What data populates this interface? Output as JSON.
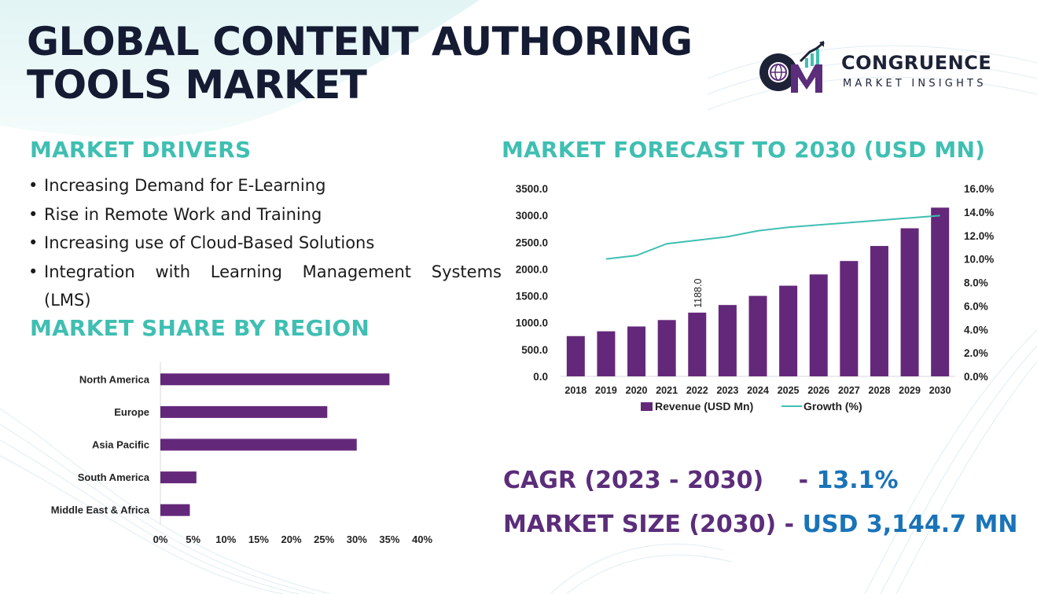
{
  "title": {
    "line1": "GLOBAL CONTENT AUTHORING",
    "line2": "TOOLS MARKET"
  },
  "logo": {
    "name": "CONGRUENCE",
    "tagline": "MARKET INSIGHTS"
  },
  "drivers": {
    "heading": "MARKET DRIVERS",
    "items": [
      "Increasing Demand for E-Learning",
      "Rise in Remote Work and Training",
      "Increasing use of Cloud-Based Solutions"
    ],
    "last_item_words": [
      "Integration",
      "with",
      "Learning",
      "Management",
      "Systems"
    ],
    "last_item_tail": "(LMS)"
  },
  "region": {
    "heading": "MARKET SHARE BY REGION"
  },
  "forecast": {
    "heading": "MARKET FORECAST TO 2030 (USD MN)"
  },
  "stats": {
    "cagr_label": "CAGR (2023 - 2030)",
    "cagr_dash": "-",
    "cagr_value": "13.1%",
    "size_label": "MARKET SIZE (2030)",
    "size_dash": "-",
    "size_value": "USD 3,144.7 MN"
  },
  "colors": {
    "bar": "#64287a",
    "line": "#3fbfb2",
    "heading": "#3fbfb2",
    "title": "#141b33"
  },
  "chart_data": [
    {
      "type": "bar",
      "orientation": "horizontal",
      "categories": [
        "North America",
        "Europe",
        "Asia Pacific",
        "South America",
        "Middle East & Africa"
      ],
      "values": [
        35,
        25.5,
        30,
        5.5,
        4.5
      ],
      "xlim": [
        0,
        40
      ],
      "xticks": [
        "0%",
        "5%",
        "10%",
        "15%",
        "20%",
        "25%",
        "30%",
        "35%",
        "40%"
      ],
      "grid": false
    },
    {
      "type": "bar",
      "categories": [
        "2018",
        "2019",
        "2020",
        "2021",
        "2022",
        "2023",
        "2024",
        "2025",
        "2026",
        "2027",
        "2028",
        "2029",
        "2030"
      ],
      "series": [
        {
          "name": "Revenue (USD Mn)",
          "type": "bar",
          "axis": "left",
          "values": [
            750,
            840,
            930,
            1050,
            1188,
            1330,
            1500,
            1690,
            1900,
            2150,
            2430,
            2760,
            3144.7
          ]
        },
        {
          "name": "Growth (%)",
          "type": "line",
          "axis": "right",
          "values": [
            null,
            10.0,
            10.3,
            11.3,
            11.6,
            11.9,
            12.4,
            12.7,
            12.9,
            13.1,
            13.3,
            13.5,
            13.7
          ]
        }
      ],
      "data_labels": [
        {
          "index": 4,
          "text": "1188.0"
        }
      ],
      "ylim_left": [
        0,
        3500
      ],
      "yticks_left": [
        "0.0",
        "500.0",
        "1000.0",
        "1500.0",
        "2000.0",
        "2500.0",
        "3000.0",
        "3500.0"
      ],
      "ylim_right": [
        0,
        16
      ],
      "yticks_right": [
        "0.0%",
        "2.0%",
        "4.0%",
        "6.0%",
        "8.0%",
        "10.0%",
        "12.0%",
        "14.0%",
        "16.0%"
      ],
      "legend": "bottom",
      "grid": false
    }
  ]
}
